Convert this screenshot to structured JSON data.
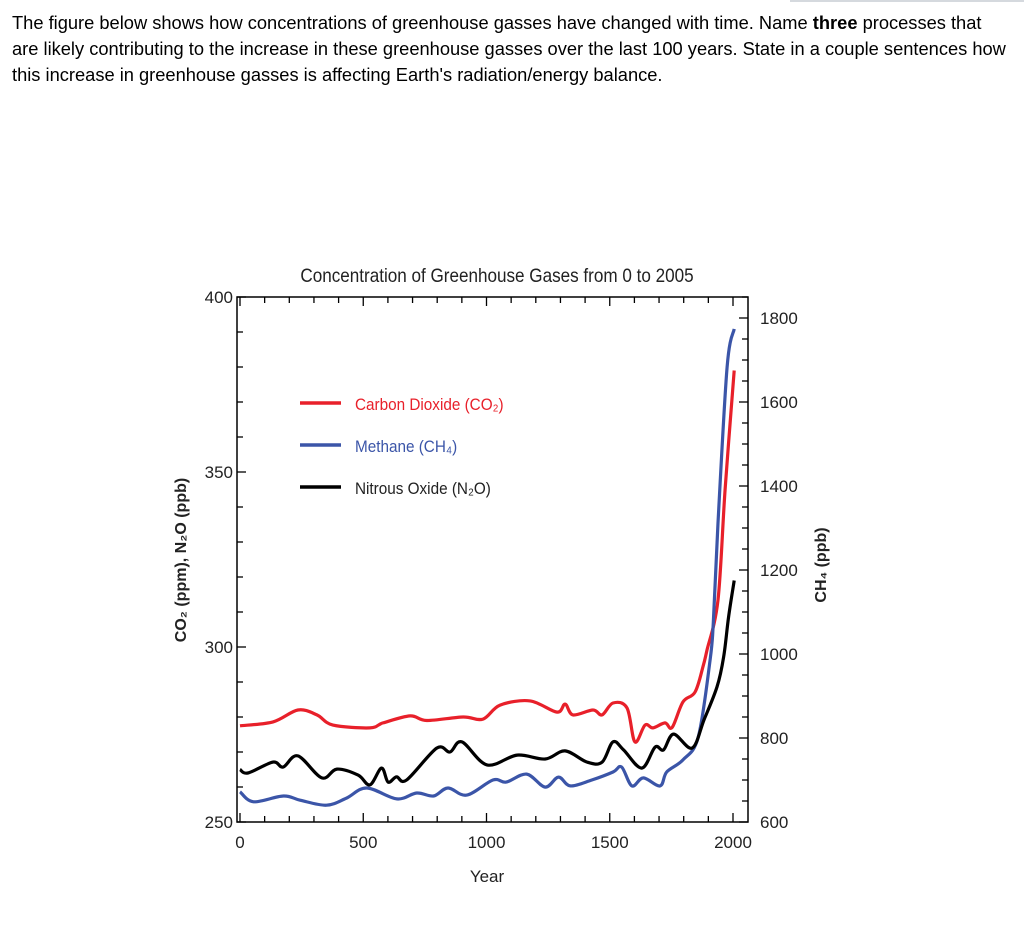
{
  "question": {
    "part1": "The figure below shows how concentrations of greenhouse gasses have changed with time. Name ",
    "bold": "three",
    "part2": " processes that are likely contributing to the increase in these greenhouse gasses over the last 100 years. State in a couple sentences how this increase in greenhouse gasses is affecting Earth's radiation/energy balance."
  },
  "chart_data": {
    "type": "line",
    "title": "Concentration of Greenhouse Gases from 0 to 2005",
    "xlabel": "Year",
    "ylabel_left": "CO₂ (ppm), N₂O (ppb)",
    "ylabel_right": "CH₄ (ppb)",
    "xlim": [
      0,
      2000
    ],
    "ylim_left": [
      250,
      400
    ],
    "ylim_right": [
      600,
      1800
    ],
    "x_ticks": [
      "0",
      "500",
      "1000",
      "1500",
      "2000"
    ],
    "y_ticks_left": [
      "250",
      "300",
      "350",
      "400"
    ],
    "y_ticks_right": [
      "600",
      "800",
      "1000",
      "1200",
      "1400",
      "1600",
      "1800"
    ],
    "grid": false,
    "legend_placement": "top-left",
    "series": [
      {
        "name": "Carbon Dioxide (CO₂)",
        "axis": "left",
        "color": "#e8202a",
        "x": [
          0,
          134,
          235,
          312,
          377,
          527,
          580,
          690,
          758,
          905,
          986,
          1055,
          1177,
          1286,
          1319,
          1351,
          1432,
          1469,
          1513,
          1570,
          1602,
          1643,
          1675,
          1724,
          1753,
          1797,
          1846,
          1878,
          1894,
          1939,
          1968,
          2005
        ],
        "y": [
          277.5,
          278.6,
          282,
          280.6,
          277.7,
          276.9,
          278.3,
          280.3,
          279,
          280,
          279.4,
          283.4,
          284.6,
          281.4,
          283.7,
          280.6,
          282,
          280.6,
          284,
          282.6,
          272.9,
          277.7,
          276.9,
          278.3,
          277,
          284.3,
          287.1,
          294.3,
          299,
          313.4,
          345,
          379
        ]
      },
      {
        "name": "Methane (CH₄)",
        "axis": "right",
        "color": "#3b55a8",
        "x": [
          0,
          55,
          176,
          244,
          351,
          432,
          514,
          636,
          717,
          785,
          844,
          920,
          1026,
          1080,
          1163,
          1238,
          1292,
          1340,
          1427,
          1513,
          1548,
          1590,
          1636,
          1704,
          1731,
          1797,
          1859,
          1907,
          1920,
          1939,
          1976,
          2005
        ],
        "y": [
          672,
          648,
          662,
          652,
          640,
          657,
          681,
          655,
          669,
          662,
          681,
          664,
          700,
          695,
          714,
          683,
          707,
          686,
          700,
          719,
          731,
          686,
          705,
          686,
          719,
          748,
          802,
          986,
          1074,
          1312,
          1683,
          1774
        ]
      },
      {
        "name": "Nitrous Oxide (N₂O)",
        "axis": "left",
        "color": "#000000",
        "x": [
          0,
          32,
          134,
          175,
          235,
          332,
          393,
          479,
          527,
          574,
          601,
          635,
          676,
          798,
          852,
          900,
          1002,
          1124,
          1238,
          1319,
          1408,
          1469,
          1513,
          1556,
          1630,
          1684,
          1718,
          1759,
          1834,
          1882,
          1935,
          1962,
          1982,
          2005
        ],
        "y": [
          265,
          264,
          267.1,
          265.7,
          268.9,
          262.6,
          265.1,
          263.4,
          260.6,
          265.4,
          261.4,
          262.9,
          262,
          271.1,
          270,
          272.9,
          266.3,
          269.1,
          268,
          270.3,
          267.1,
          267.1,
          272.9,
          270.6,
          265.4,
          271.4,
          270.6,
          275.1,
          271.1,
          279.1,
          288.6,
          297.1,
          308.6,
          319
        ]
      }
    ]
  }
}
